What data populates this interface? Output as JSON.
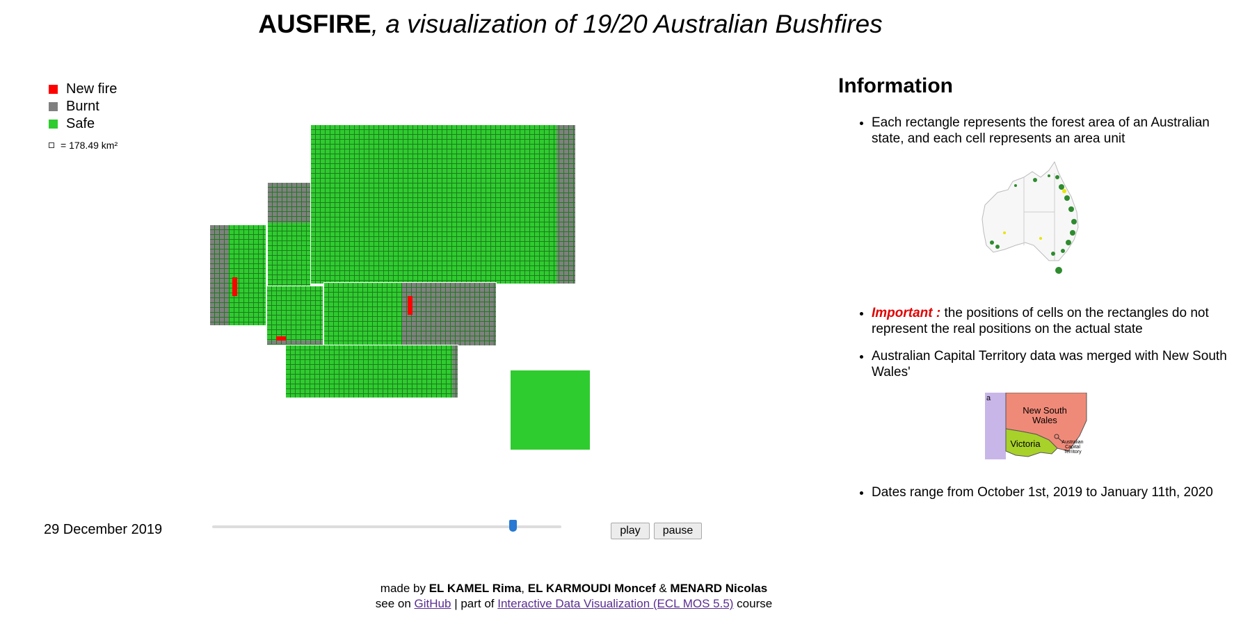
{
  "title": {
    "app": "AUSFIRE",
    "subtitle": ", a visualization of 19/20 Australian Bushfires"
  },
  "legend": {
    "items": [
      {
        "label": "New fire",
        "color": "#ff0000"
      },
      {
        "label": "Burnt",
        "color": "#808080"
      },
      {
        "label": "Safe",
        "color": "#2ecc2e"
      }
    ],
    "scale": "= 178.49 km²"
  },
  "timeline": {
    "date": "29 December 2019",
    "progress": 0.86,
    "play_label": "play",
    "pause_label": "pause"
  },
  "info": {
    "title": "Information",
    "bullet1": "Each rectangle represents the forest area of an Australian state, and each cell represents an area unit",
    "bullet2_important": "Important :",
    "bullet2_rest": " the positions of cells on the rectangles do not represent the real positions on the actual state",
    "bullet3": "Australian Capital Territory data was merged with New South Wales'",
    "bullet4": "Dates range from October 1st, 2019 to January 11th, 2020",
    "map_labels": {
      "nsw_line1": "New South",
      "nsw_line2": "Wales",
      "vic": "Victoria",
      "act_line1": "Australian",
      "act_line2": "Capital",
      "act_line3": "Territory",
      "sa_fragment": "a"
    }
  },
  "footer": {
    "made_by": "made by ",
    "author1": "EL KAMEL Rima",
    "sep1": ", ",
    "author2": "EL KARMOUDI Moncef",
    "sep2": " & ",
    "author3": "MENARD Nicolas",
    "see_on": "see on ",
    "github": "GitHub",
    "part_of": " | part of ",
    "course_link": "Interactive Data Visualization (ECL MOS 5.5)",
    "course": " course"
  },
  "colors": {
    "safe": "#2ecc2e",
    "burnt": "#808080",
    "fire": "#ff0000",
    "grid": "#1f7a1f"
  }
}
